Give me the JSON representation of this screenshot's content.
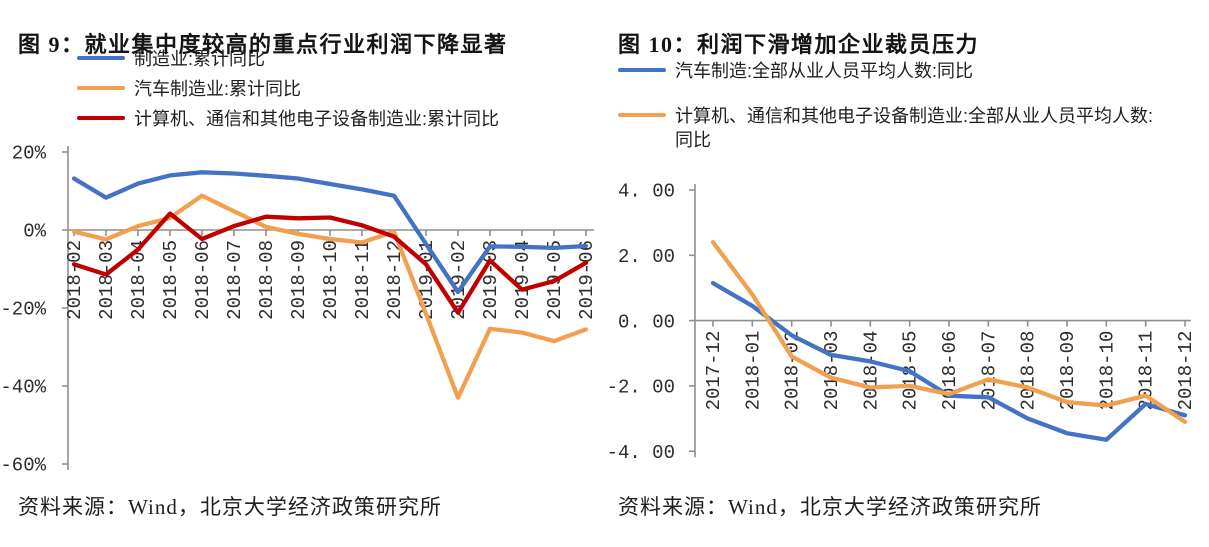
{
  "chart_data": [
    {
      "id": "figure-9",
      "type": "line",
      "title": "图 9：就业集中度较高的重点行业利润下降显著",
      "source": "资料来源：Wind，北京大学经济政策研究所",
      "legend_position": "top-left",
      "grid": false,
      "ylim": [
        -60,
        20
      ],
      "yticks": [
        20,
        0,
        -20,
        -40,
        -60
      ],
      "ytick_labels": [
        "20%",
        "0%",
        "-20%",
        "-40%",
        "-60%"
      ],
      "categories": [
        "2018-02",
        "2018-03",
        "2018-04",
        "2018-05",
        "2018-06",
        "2018-07",
        "2018-08",
        "2018-09",
        "2018-10",
        "2018-11",
        "2018-12",
        "2019-01",
        "2019-02",
        "2019-03",
        "2019-04",
        "2019-05",
        "2019-06"
      ],
      "series": [
        {
          "name": "制造业:累计同比",
          "color": "#4472C4",
          "values": [
            13.2,
            8.3,
            11.9,
            14.0,
            14.8,
            14.5,
            13.9,
            13.2,
            11.8,
            10.4,
            8.8,
            -3.6,
            -15.9,
            -4.2,
            -4.3,
            -4.6,
            -4.1
          ]
        },
        {
          "name": "汽车制造业:累计同比",
          "color": "#F1A04F",
          "values": [
            -0.4,
            -2.4,
            1.0,
            3.1,
            8.8,
            4.8,
            0.8,
            -1.0,
            -2.3,
            -3.2,
            -0.4,
            -21.5,
            -43.0,
            -25.3,
            -26.3,
            -28.5,
            -25.5
          ]
        },
        {
          "name": "计算机、通信和其他电子设备制造业:累计同比",
          "color": "#C00000",
          "values": [
            -8.8,
            -11.4,
            -5.0,
            4.2,
            -2.3,
            1.0,
            3.4,
            3.0,
            3.2,
            1.2,
            -1.7,
            -8.8,
            -21.2,
            -7.8,
            -15.3,
            -13.1,
            -8.4
          ]
        }
      ]
    },
    {
      "id": "figure-10",
      "type": "line",
      "title": "图 10：利润下滑增加企业裁员压力",
      "source": "资料来源：Wind，北京大学经济政策研究所",
      "legend_position": "top-left",
      "grid": false,
      "ylim": [
        -4,
        4
      ],
      "yticks": [
        4,
        2,
        0,
        -2,
        -4
      ],
      "ytick_labels": [
        "4. 00",
        "2. 00",
        "0. 00",
        "-2. 00",
        "-4. 00"
      ],
      "categories": [
        "2017-12",
        "2018-01",
        "2018-02",
        "2018-03",
        "2018-04",
        "2018-05",
        "2018-06",
        "2018-07",
        "2018-08",
        "2018-09",
        "2018-10",
        "2018-11",
        "2018-12"
      ],
      "series": [
        {
          "name": "汽车制造:全部从业人员平均人数:同比",
          "color": "#4472C4",
          "values": [
            1.15,
            0.45,
            -0.45,
            -1.05,
            -1.25,
            -1.55,
            -2.3,
            -2.35,
            -3.0,
            -3.45,
            -3.65,
            -2.55,
            -2.9
          ]
        },
        {
          "name": "计算机、通信和其他电子设备制造业:全部从业人员平均人数:同比",
          "color": "#F1A04F",
          "values": [
            2.4,
            0.8,
            -1.1,
            -1.75,
            -2.05,
            -2.0,
            -2.25,
            -1.8,
            -2.05,
            -2.5,
            -2.6,
            -2.3,
            -3.1
          ]
        }
      ]
    }
  ]
}
